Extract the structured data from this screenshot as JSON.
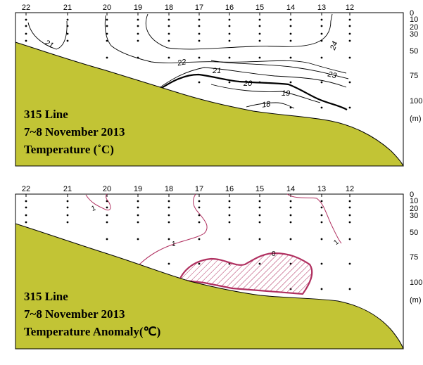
{
  "chart_data": [
    {
      "type": "contour",
      "title_lines": [
        "315 Line",
        "7~8 November 2013",
        "Temperature (˚C)"
      ],
      "stations": [
        "22",
        "21",
        "20",
        "19",
        "18",
        "17",
        "16",
        "15",
        "14",
        "13",
        "12"
      ],
      "depth_ticks": [
        "0",
        "10",
        "20",
        "30",
        "50",
        "75",
        "100"
      ],
      "depth_unit": "(m)",
      "contour_labels": [
        "21",
        "22",
        "24",
        "21",
        "23",
        "20",
        "19",
        "18"
      ]
    },
    {
      "type": "contour",
      "title_lines": [
        "315 Line",
        "7~8 November 2013",
        "Temperature Anomaly(℃)"
      ],
      "stations": [
        "22",
        "21",
        "20",
        "19",
        "18",
        "17",
        "16",
        "15",
        "14",
        "13",
        "12"
      ],
      "depth_ticks": [
        "0",
        "10",
        "20",
        "30",
        "50",
        "75",
        "100"
      ],
      "depth_unit": "(m)",
      "contour_labels": [
        "1",
        "1",
        "0",
        "1"
      ]
    }
  ]
}
